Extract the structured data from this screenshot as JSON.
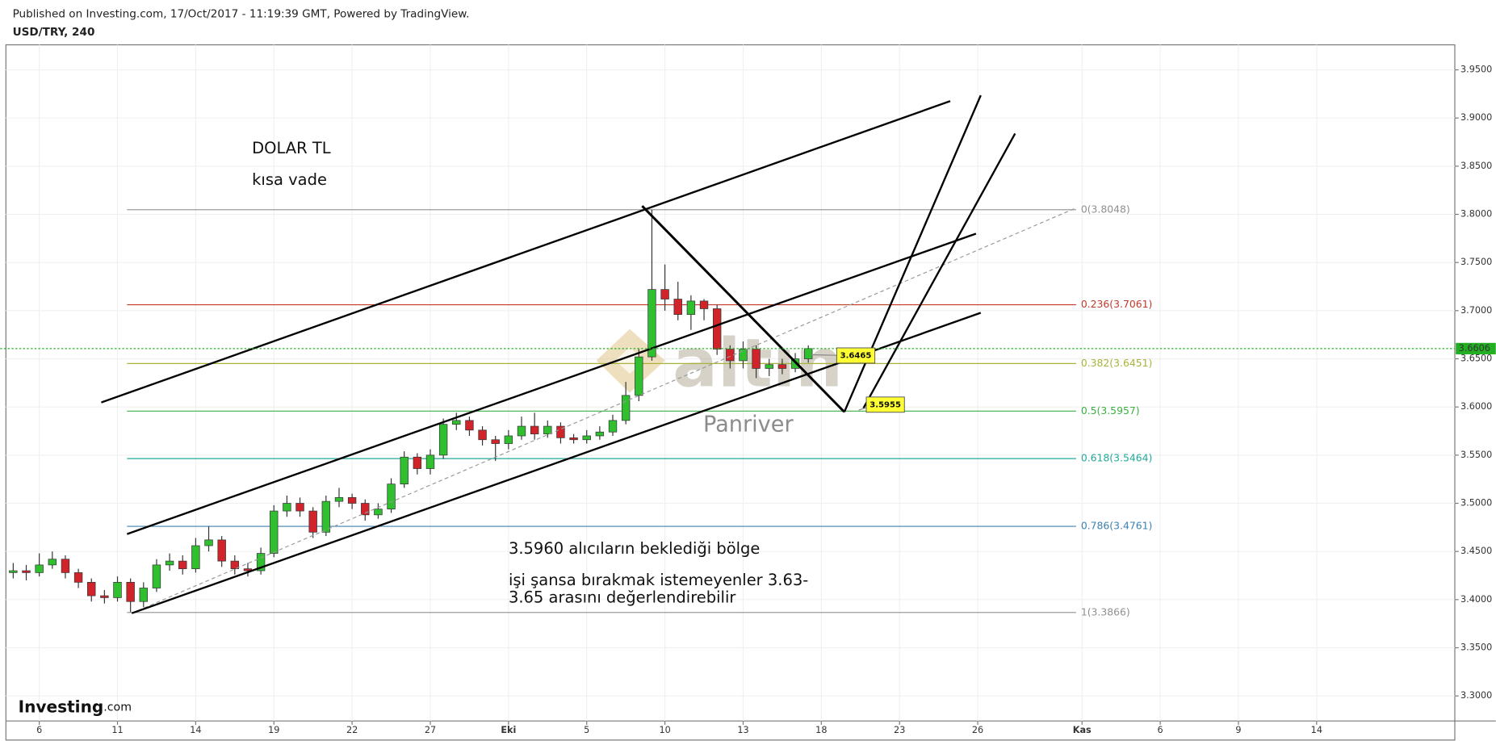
{
  "header": {
    "published": "Published on Investing.com, 17/Oct/2017 - 11:19:39 GMT, Powered by TradingView.",
    "symbol": "USD/TRY, 240"
  },
  "chart_data": {
    "type": "candlestick",
    "x": [
      -1,
      -0.5,
      0,
      0.5,
      1,
      1.5,
      2,
      2.5,
      3,
      3.5,
      4,
      4.5,
      5,
      5.5,
      6,
      6.5,
      7,
      7.5,
      8,
      8.5,
      9,
      9.5,
      10,
      10.5,
      11,
      11.5,
      12,
      12.5,
      13,
      13.5,
      14,
      14.5,
      15,
      15.5,
      16,
      16.5,
      17,
      17.5,
      18,
      18.5,
      19,
      19.5,
      20,
      20.5,
      21,
      21.5,
      22,
      22.5,
      23,
      23.5,
      24,
      24.5,
      25,
      25.5,
      26,
      26.5,
      27,
      27.5,
      28,
      28.5,
      29,
      29.5
    ],
    "open": [
      3.428,
      3.43,
      3.428,
      3.436,
      3.442,
      3.428,
      3.418,
      3.404,
      3.402,
      3.418,
      3.398,
      3.412,
      3.436,
      3.44,
      3.432,
      3.456,
      3.462,
      3.44,
      3.432,
      3.43,
      3.448,
      3.492,
      3.5,
      3.492,
      3.47,
      3.502,
      3.506,
      3.5,
      3.488,
      3.494,
      3.52,
      3.548,
      3.536,
      3.55,
      3.582,
      3.586,
      3.576,
      3.566,
      3.562,
      3.57,
      3.58,
      3.572,
      3.58,
      3.568,
      3.566,
      3.57,
      3.574,
      3.586,
      3.612,
      3.652,
      3.722,
      3.712,
      3.696,
      3.71,
      3.702,
      3.66,
      3.648,
      3.66,
      3.64,
      3.644,
      3.64,
      3.65
    ],
    "high": [
      3.438,
      3.436,
      3.448,
      3.45,
      3.446,
      3.432,
      3.422,
      3.41,
      3.424,
      3.422,
      3.418,
      3.442,
      3.448,
      3.446,
      3.464,
      3.476,
      3.466,
      3.446,
      3.438,
      3.454,
      3.498,
      3.508,
      3.506,
      3.496,
      3.508,
      3.516,
      3.51,
      3.504,
      3.5,
      3.526,
      3.554,
      3.552,
      3.556,
      3.588,
      3.594,
      3.59,
      3.58,
      3.57,
      3.576,
      3.59,
      3.594,
      3.586,
      3.584,
      3.572,
      3.576,
      3.58,
      3.592,
      3.626,
      3.66,
      3.805,
      3.748,
      3.73,
      3.716,
      3.712,
      3.706,
      3.664,
      3.668,
      3.664,
      3.65,
      3.65,
      3.656,
      3.664
    ],
    "low": [
      3.422,
      3.42,
      3.424,
      3.432,
      3.422,
      3.412,
      3.398,
      3.396,
      3.398,
      3.387,
      3.392,
      3.408,
      3.43,
      3.426,
      3.428,
      3.45,
      3.434,
      3.426,
      3.424,
      3.426,
      3.444,
      3.486,
      3.486,
      3.464,
      3.466,
      3.496,
      3.494,
      3.482,
      3.484,
      3.49,
      3.516,
      3.53,
      3.53,
      3.546,
      3.576,
      3.57,
      3.56,
      3.544,
      3.556,
      3.566,
      3.566,
      3.568,
      3.562,
      3.562,
      3.562,
      3.566,
      3.57,
      3.582,
      3.606,
      3.648,
      3.7,
      3.69,
      3.68,
      3.69,
      3.654,
      3.64,
      3.64,
      3.63,
      3.632,
      3.634,
      3.636,
      3.646
    ],
    "close": [
      3.43,
      3.428,
      3.436,
      3.442,
      3.428,
      3.418,
      3.404,
      3.402,
      3.418,
      3.398,
      3.412,
      3.436,
      3.44,
      3.432,
      3.456,
      3.462,
      3.44,
      3.432,
      3.43,
      3.448,
      3.492,
      3.5,
      3.492,
      3.47,
      3.502,
      3.506,
      3.5,
      3.488,
      3.494,
      3.52,
      3.548,
      3.536,
      3.55,
      3.582,
      3.586,
      3.576,
      3.566,
      3.562,
      3.57,
      3.58,
      3.572,
      3.58,
      3.568,
      3.566,
      3.57,
      3.574,
      3.586,
      3.612,
      3.652,
      3.722,
      3.712,
      3.696,
      3.71,
      3.702,
      3.66,
      3.648,
      3.66,
      3.64,
      3.644,
      3.64,
      3.65,
      3.6606
    ],
    "up_color": "#2fbf2f",
    "down_color": "#d0232a",
    "xlim": [
      -1.28,
      54.3
    ],
    "xticks": [
      {
        "value": 0,
        "label": "6"
      },
      {
        "value": 3,
        "label": "11"
      },
      {
        "value": 6,
        "label": "14"
      },
      {
        "value": 9,
        "label": "19"
      },
      {
        "value": 12,
        "label": "22"
      },
      {
        "value": 15,
        "label": "27"
      },
      {
        "value": 18,
        "label": "Eki"
      },
      {
        "value": 21,
        "label": "5"
      },
      {
        "value": 24,
        "label": "10"
      },
      {
        "value": 27,
        "label": "13"
      },
      {
        "value": 30,
        "label": "18"
      },
      {
        "value": 33,
        "label": "23"
      },
      {
        "value": 36,
        "label": "26"
      },
      {
        "value": 40,
        "label": "Kas"
      },
      {
        "value": 43,
        "label": "6"
      },
      {
        "value": 46,
        "label": "9"
      },
      {
        "value": 49,
        "label": "14"
      }
    ],
    "ylim": [
      3.274,
      3.976
    ],
    "yticks": [
      {
        "value": 3.3,
        "label": "3.3000"
      },
      {
        "value": 3.35,
        "label": "3.3500"
      },
      {
        "value": 3.4,
        "label": "3.4000"
      },
      {
        "value": 3.45,
        "label": "3.4500"
      },
      {
        "value": 3.5,
        "label": "3.5000"
      },
      {
        "value": 3.55,
        "label": "3.5500"
      },
      {
        "value": 3.6,
        "label": "3.6000"
      },
      {
        "value": 3.65,
        "label": "3.6500"
      },
      {
        "value": 3.7,
        "label": "3.7000"
      },
      {
        "value": 3.75,
        "label": "3.7500"
      },
      {
        "value": 3.8,
        "label": "3.8000"
      },
      {
        "value": 3.85,
        "label": "3.8500"
      },
      {
        "value": 3.9,
        "label": "3.9000"
      },
      {
        "value": 3.95,
        "label": "3.9500"
      }
    ],
    "grid": true,
    "price_line": {
      "value": 3.6606,
      "label": "3.6606",
      "color": "#22b022"
    },
    "fib_levels": [
      {
        "value": 3.8048,
        "label": "0(3.8048)",
        "color": "#909090"
      },
      {
        "value": 3.7061,
        "label": "0.236(3.7061)",
        "color": "#c0392b"
      },
      {
        "value": 3.6451,
        "label": "0.382(3.6451)",
        "color": "#a9b23a"
      },
      {
        "value": 3.5957,
        "label": "0.5(3.5957)",
        "color": "#3cb043"
      },
      {
        "value": 3.5464,
        "label": "0.618(3.5464)",
        "color": "#22a99a"
      },
      {
        "value": 3.4761,
        "label": "0.786(3.4761)",
        "color": "#3d80b0"
      },
      {
        "value": 3.3866,
        "label": "1(3.3866)",
        "color": "#909090"
      }
    ],
    "callouts": [
      {
        "value": 3.6465,
        "label": "3.6465"
      },
      {
        "value": 3.5955,
        "label": "3.5955"
      }
    ],
    "annotations": [
      "DOLAR TL",
      "kısa vade",
      "3.5960 alıcıların beklediği bölge",
      "işi şansa bırakmak istemeyenler 3.63-",
      "3.65 arasını değerlendirebilir"
    ],
    "watermark": {
      "logo": "altın",
      "name": "Panriver"
    },
    "brand": {
      "name": "Investing",
      "suffix": ".com"
    }
  }
}
